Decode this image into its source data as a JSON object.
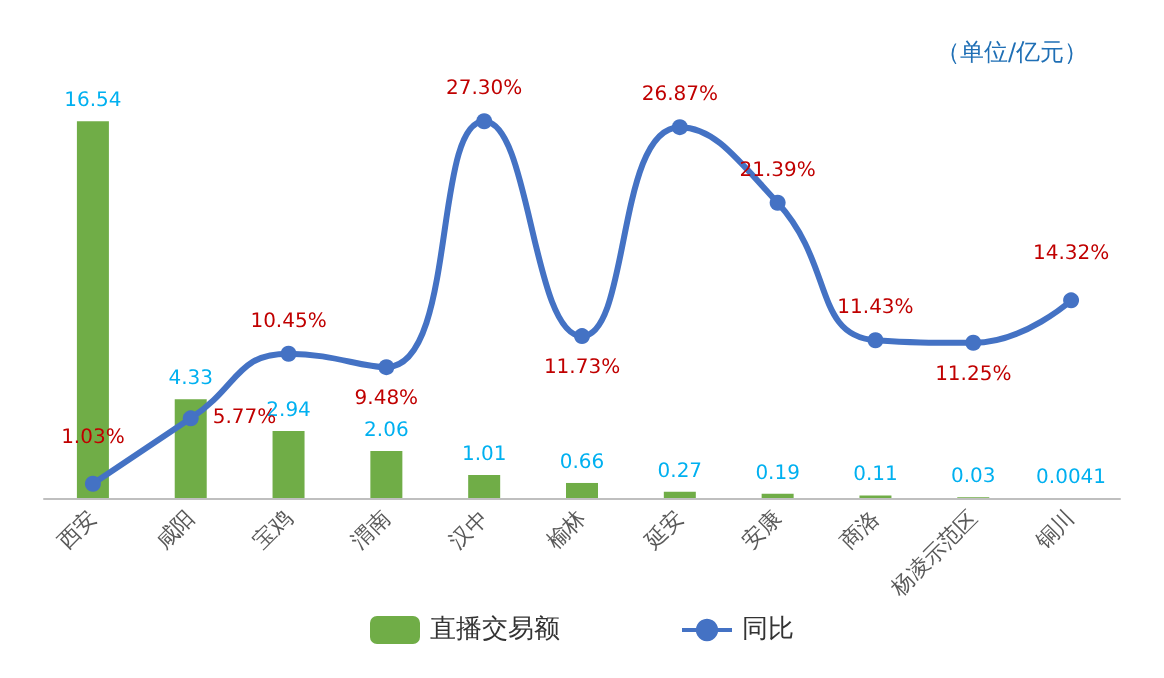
{
  "chart_data": {
    "type": "bar",
    "categories": [
      "西安",
      "咸阳",
      "宝鸡",
      "渭南",
      "汉中",
      "榆林",
      "延安",
      "安康",
      "商洛",
      "杨凌示范区",
      "铜川"
    ],
    "series": [
      {
        "name": "直播交易额",
        "color": "#70ad47",
        "values": [
          16.54,
          4.33,
          2.94,
          2.06,
          1.01,
          0.66,
          0.27,
          0.19,
          0.11,
          0.03,
          0.0041
        ],
        "value_labels": [
          "16.54",
          "4.33",
          "2.94",
          "2.06",
          "1.01",
          "0.66",
          "0.27",
          "0.19",
          "0.11",
          "0.03",
          "0.0041"
        ]
      },
      {
        "name": "同比",
        "type": "line",
        "axis": "y2",
        "color": "#4472c4",
        "values": [
          1.03,
          5.77,
          10.45,
          9.48,
          27.3,
          11.73,
          26.87,
          21.39,
          11.43,
          11.25,
          14.32
        ],
        "value_labels": [
          "1.03%",
          "5.77%",
          "10.45%",
          "9.48%",
          "27.30%",
          "11.73%",
          "26.87%",
          "21.39%",
          "11.43%",
          "11.25%",
          "14.32%"
        ]
      }
    ],
    "annotations": [
      "（单位/亿元）"
    ],
    "legend": "bottom",
    "marker": "circle"
  }
}
